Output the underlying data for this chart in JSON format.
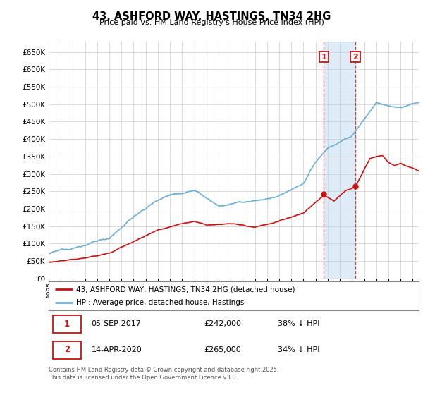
{
  "title": "43, ASHFORD WAY, HASTINGS, TN34 2HG",
  "subtitle": "Price paid vs. HM Land Registry's House Price Index (HPI)",
  "hpi_color": "#6baed6",
  "price_color": "#cc1111",
  "marker1_date_x": 2017.68,
  "marker2_date_x": 2020.28,
  "marker1_price": 242000,
  "marker2_price": 265000,
  "marker1_label": "05-SEP-2017",
  "marker2_label": "14-APR-2020",
  "marker1_hpi_pct": "38% ↓ HPI",
  "marker2_hpi_pct": "34% ↓ HPI",
  "legend_house": "43, ASHFORD WAY, HASTINGS, TN34 2HG (detached house)",
  "legend_hpi": "HPI: Average price, detached house, Hastings",
  "footer": "Contains HM Land Registry data © Crown copyright and database right 2025.\nThis data is licensed under the Open Government Licence v3.0.",
  "ylim": [
    0,
    680000
  ],
  "yticks": [
    0,
    50000,
    100000,
    150000,
    200000,
    250000,
    300000,
    350000,
    400000,
    450000,
    500000,
    550000,
    600000,
    650000
  ],
  "xlim_start": 1995.0,
  "xlim_end": 2025.5,
  "background_color": "#ffffff",
  "grid_color": "#cccccc",
  "shaded_color": "#d0e4f5"
}
